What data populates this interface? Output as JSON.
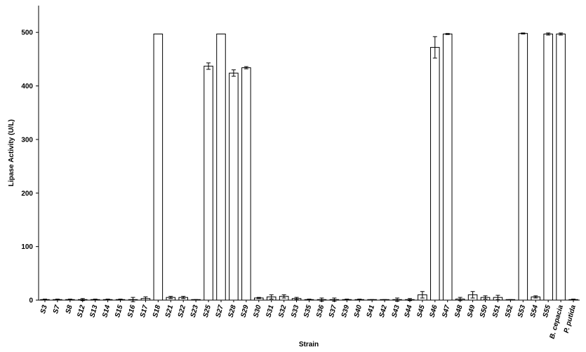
{
  "chart_data": {
    "type": "bar",
    "x_label": "Strain",
    "y_label": "Lipase Activity (U/L)",
    "categories": [
      "S3",
      "S7",
      "S8",
      "S12",
      "S13",
      "S14",
      "S15",
      "S16",
      "S17",
      "S18",
      "S21",
      "S22",
      "S23",
      "S25",
      "S27",
      "S28",
      "S29",
      "S30",
      "S31",
      "S32",
      "S33",
      "S35",
      "S36",
      "S37",
      "S39",
      "S40",
      "S41",
      "S42",
      "S43",
      "S44",
      "S45",
      "S46",
      "S47",
      "S48",
      "S49",
      "S50",
      "S51",
      "S52",
      "S53",
      "S54",
      "S55",
      "B. cepacia",
      "P. putida"
    ],
    "values": [
      1,
      1,
      1,
      1,
      1,
      1,
      1,
      1,
      3,
      497,
      5,
      5,
      1,
      437,
      497,
      424,
      434,
      4,
      6,
      7,
      3,
      1,
      1,
      1,
      1,
      1,
      1,
      1,
      1,
      1,
      10,
      472,
      497,
      2,
      10,
      5,
      5,
      1,
      498,
      6,
      497,
      497,
      1
    ],
    "errors": [
      1,
      1,
      1,
      2,
      1,
      1,
      1,
      4,
      3,
      0,
      2,
      2,
      0,
      6,
      0,
      6,
      2,
      1,
      4,
      3,
      2,
      1,
      3,
      3,
      1,
      1,
      0,
      0,
      3,
      2,
      6,
      20,
      1,
      3,
      6,
      3,
      4,
      0,
      1,
      2,
      2,
      2,
      1
    ],
    "color": "#ffffff",
    "ylim": [
      0,
      550
    ],
    "yticks": [
      0,
      100,
      200,
      300,
      400,
      500
    ],
    "grid": false
  }
}
